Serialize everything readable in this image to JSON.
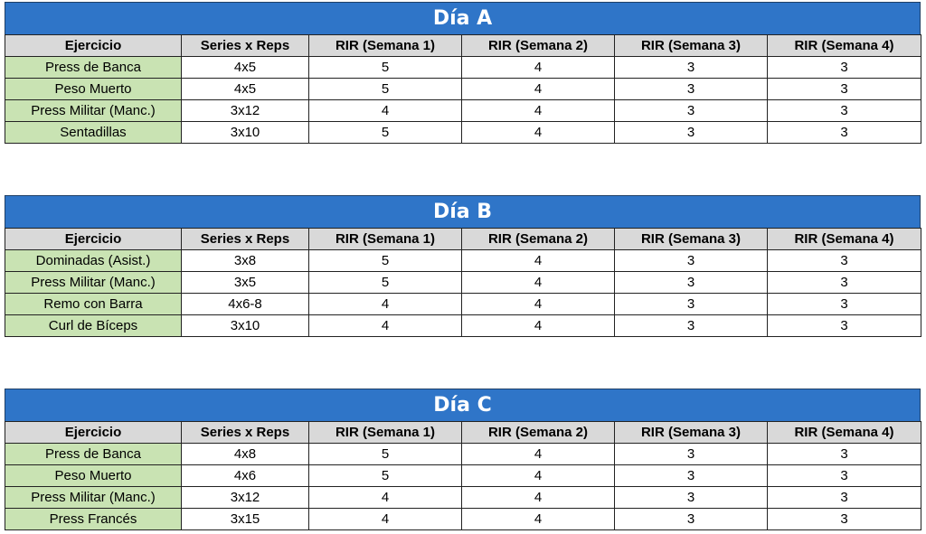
{
  "headers": [
    "Ejercicio",
    "Series x Reps",
    "RIR (Semana 1)",
    "RIR (Semana 2)",
    "RIR (Semana 3)",
    "RIR (Semana 4)"
  ],
  "tables": [
    {
      "title": "Día A",
      "rows": [
        [
          "Press de Banca",
          "4x5",
          "5",
          "4",
          "3",
          "3"
        ],
        [
          "Peso Muerto",
          "4x5",
          "5",
          "4",
          "3",
          "3"
        ],
        [
          "Press Militar (Manc.)",
          "3x12",
          "4",
          "4",
          "3",
          "3"
        ],
        [
          "Sentadillas",
          "3x10",
          "5",
          "4",
          "3",
          "3"
        ]
      ]
    },
    {
      "title": "Día B",
      "rows": [
        [
          "Dominadas (Asist.)",
          "3x8",
          "5",
          "4",
          "3",
          "3"
        ],
        [
          "Press Militar (Manc.)",
          "3x5",
          "5",
          "4",
          "3",
          "3"
        ],
        [
          "Remo con Barra",
          "4x6-8",
          "4",
          "4",
          "3",
          "3"
        ],
        [
          "Curl de Bíceps",
          "3x10",
          "4",
          "4",
          "3",
          "3"
        ]
      ]
    },
    {
      "title": "Día C",
      "rows": [
        [
          "Press de Banca",
          "4x8",
          "5",
          "4",
          "3",
          "3"
        ],
        [
          "Peso Muerto",
          "4x6",
          "5",
          "4",
          "3",
          "3"
        ],
        [
          "Press Militar (Manc.)",
          "3x12",
          "4",
          "4",
          "3",
          "3"
        ],
        [
          "Press Francés",
          "3x15",
          "4",
          "4",
          "3",
          "3"
        ]
      ]
    }
  ],
  "colors": {
    "title_bg": "#2f75c8",
    "header_bg": "#d9d9d9",
    "exercise_bg": "#c9e3b3"
  }
}
